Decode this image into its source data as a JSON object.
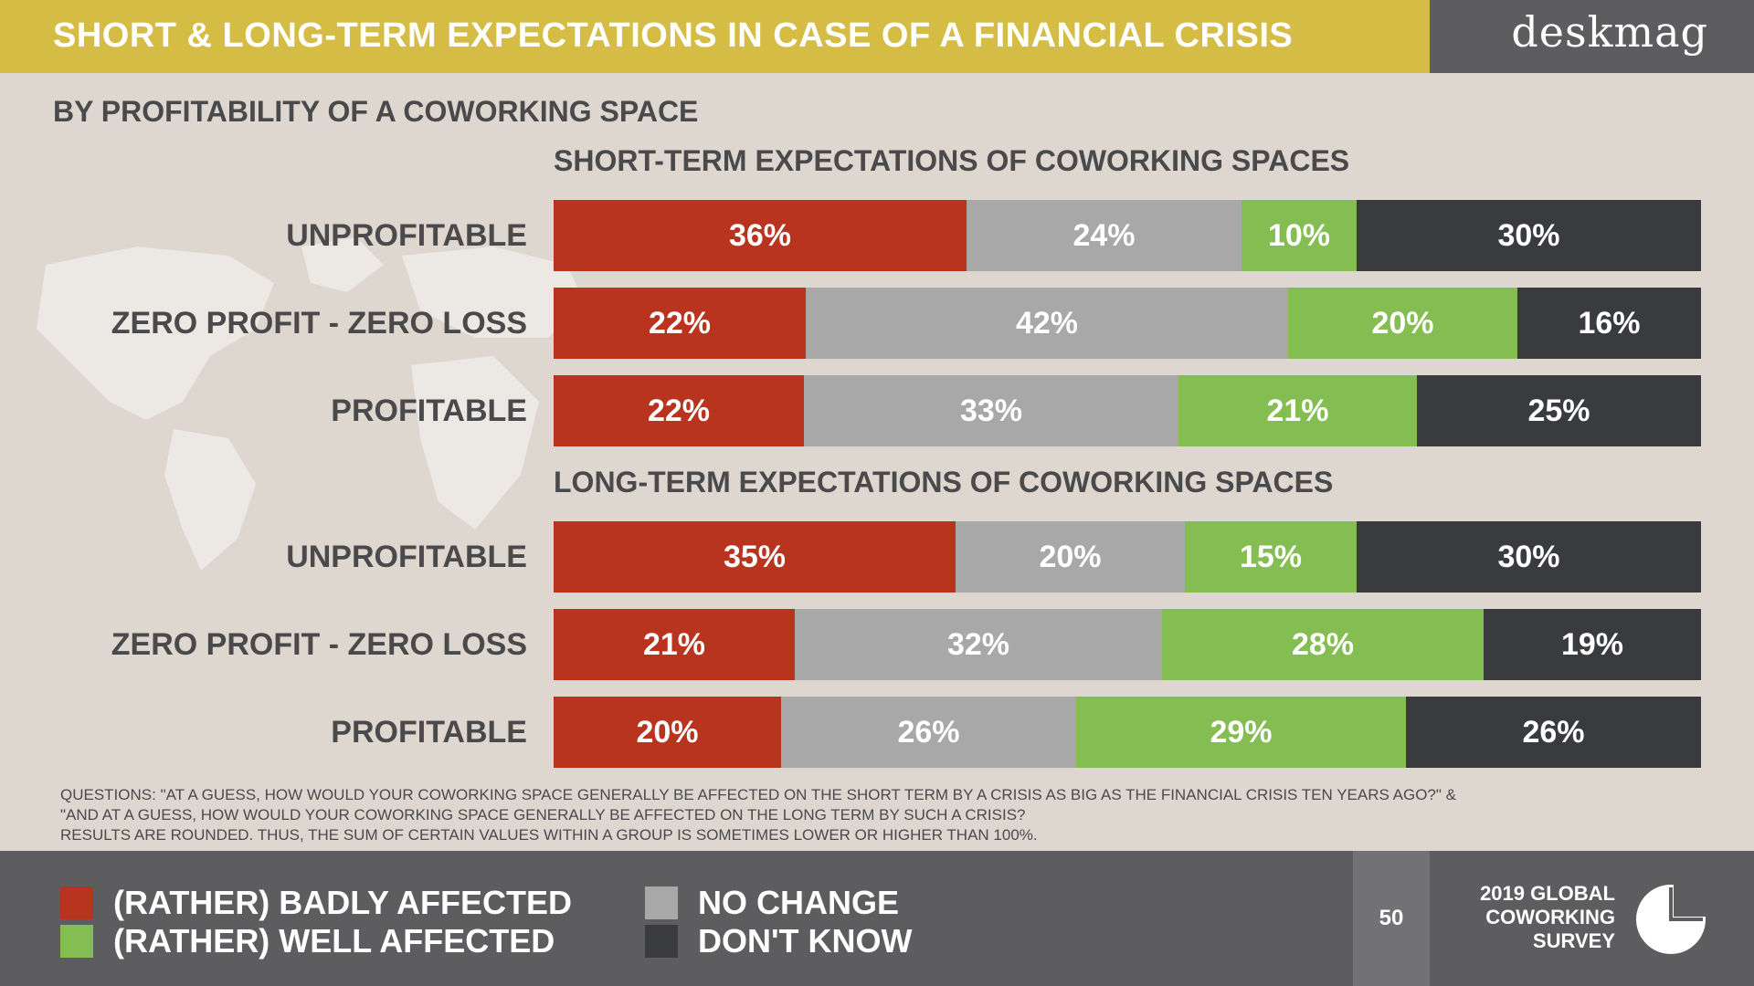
{
  "header": {
    "title": "SHORT & LONG-TERM EXPECTATIONS IN CASE OF A FINANCIAL CRISIS",
    "brand": "deskmag"
  },
  "subtitle": "BY PROFITABILITY OF A COWORKING SPACE",
  "colors": {
    "badly": "#b8341f",
    "no_change": "#a7a8a7",
    "well": "#84bd52",
    "dont_know": "#3a3b3f"
  },
  "chart_data": [
    {
      "type": "bar",
      "orientation": "horizontal",
      "stacked": true,
      "title": "SHORT-TERM EXPECTATIONS OF COWORKING SPACES",
      "categories": [
        "UNPROFITABLE",
        "ZERO PROFIT - ZERO LOSS",
        "PROFITABLE"
      ],
      "series": [
        {
          "name": "(RATHER) BADLY AFFECTED",
          "values": [
            36,
            22,
            22
          ]
        },
        {
          "name": "NO CHANGE",
          "values": [
            24,
            42,
            33
          ]
        },
        {
          "name": "(RATHER) WELL AFFECTED",
          "values": [
            10,
            20,
            21
          ]
        },
        {
          "name": "DON'T KNOW",
          "values": [
            30,
            16,
            25
          ]
        }
      ],
      "value_suffix": "%"
    },
    {
      "type": "bar",
      "orientation": "horizontal",
      "stacked": true,
      "title": "LONG-TERM EXPECTATIONS OF COWORKING SPACES",
      "categories": [
        "UNPROFITABLE",
        "ZERO PROFIT - ZERO LOSS",
        "PROFITABLE"
      ],
      "series": [
        {
          "name": "(RATHER) BADLY AFFECTED",
          "values": [
            35,
            21,
            20
          ]
        },
        {
          "name": "NO CHANGE",
          "values": [
            20,
            32,
            26
          ]
        },
        {
          "name": "(RATHER) WELL AFFECTED",
          "values": [
            15,
            28,
            29
          ]
        },
        {
          "name": "DON'T KNOW",
          "values": [
            30,
            19,
            26
          ]
        }
      ],
      "value_suffix": "%"
    }
  ],
  "notes": [
    "QUESTIONS: \"AT A GUESS, HOW WOULD YOUR COWORKING SPACE GENERALLY BE AFFECTED ON THE SHORT TERM BY A CRISIS AS BIG AS THE FINANCIAL CRISIS TEN YEARS AGO?\" &",
    "\"AND AT A GUESS, HOW WOULD YOUR COWORKING SPACE GENERALLY BE AFFECTED ON THE LONG TERM BY SUCH A CRISIS?",
    "RESULTS ARE ROUNDED. THUS, THE SUM OF CERTAIN VALUES WITHIN A GROUP IS SOMETIMES LOWER OR HIGHER THAN 100%."
  ],
  "legend": [
    {
      "label": "(RATHER) BADLY AFFECTED",
      "color": "#b8341f"
    },
    {
      "label": "(RATHER) WELL AFFECTED",
      "color": "#84bd52"
    },
    {
      "label": "NO CHANGE",
      "color": "#a7a8a7"
    },
    {
      "label": "DON'T KNOW",
      "color": "#3a3b3f"
    }
  ],
  "footer": {
    "page_number": "50",
    "survey_lines": [
      "2019 GLOBAL",
      "COWORKING",
      "SURVEY"
    ],
    "logo_icon": "pie-chart-icon"
  }
}
